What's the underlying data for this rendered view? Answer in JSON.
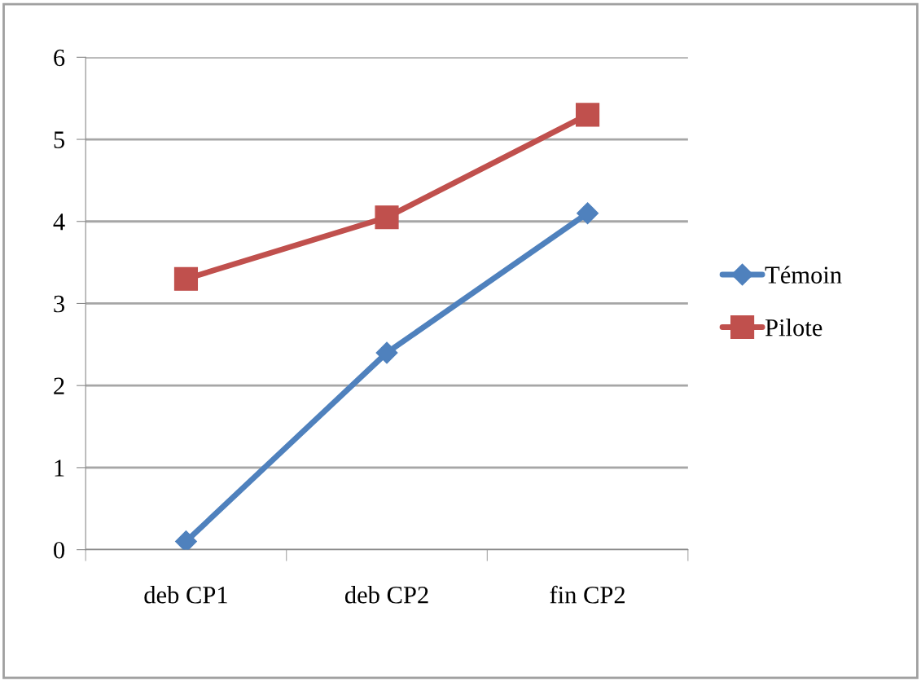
{
  "chart_data": {
    "type": "line",
    "categories": [
      "deb CP1",
      "deb CP2",
      "fin CP2"
    ],
    "series": [
      {
        "name": "Témoin",
        "color": "#4f81bd",
        "marker": "diamond",
        "values": [
          0.1,
          2.4,
          4.1
        ]
      },
      {
        "name": "Pilote",
        "color": "#c0504d",
        "marker": "square",
        "values": [
          3.3,
          4.05,
          5.3
        ]
      }
    ],
    "ylim": [
      0,
      6
    ],
    "yticks": [
      0,
      1,
      2,
      3,
      4,
      5,
      6
    ],
    "grid": "y",
    "legend": "right",
    "line_style": "solid"
  }
}
